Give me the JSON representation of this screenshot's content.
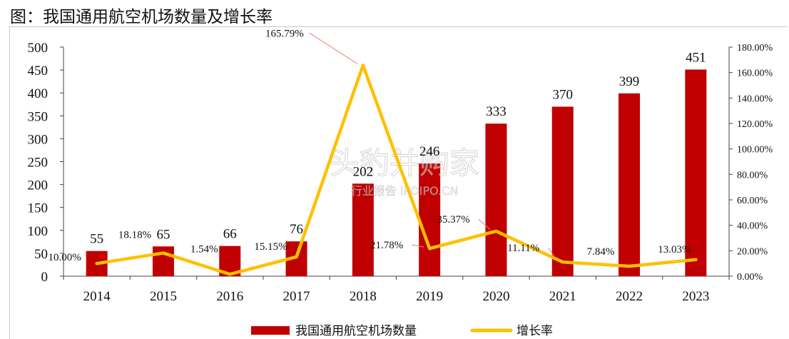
{
  "page": {
    "title": "图：我国通用航空机场数量及增长率"
  },
  "chart_data": {
    "type": "bar",
    "categories": [
      "2014",
      "2015",
      "2016",
      "2017",
      "2018",
      "2019",
      "2020",
      "2021",
      "2022",
      "2023"
    ],
    "series": [
      {
        "name": "我国通用航空机场数量",
        "type": "bar",
        "axis": "left",
        "values": [
          55,
          65,
          66,
          76,
          202,
          246,
          333,
          370,
          399,
          451
        ],
        "labels": [
          "55",
          "65",
          "66",
          "76",
          "202",
          "246",
          "333",
          "370",
          "399",
          "451"
        ]
      },
      {
        "name": "增长率",
        "type": "line",
        "axis": "right",
        "values": [
          10.0,
          18.18,
          1.54,
          15.15,
          165.79,
          21.78,
          35.37,
          11.11,
          7.84,
          13.03
        ],
        "labels": [
          "10.00%",
          "18.18%",
          "1.54%",
          "15.15%",
          "165.79%",
          "21.78%",
          "35.37%",
          "11.11%",
          "7.84%",
          "13.03%"
        ]
      }
    ],
    "y_left": {
      "min": 0,
      "max": 500,
      "step": 50,
      "ticks": [
        "0",
        "50",
        "100",
        "150",
        "200",
        "250",
        "300",
        "350",
        "400",
        "450",
        "500"
      ]
    },
    "y_right": {
      "min": 0,
      "max": 180,
      "step": 20,
      "ticks": [
        "0.00%",
        "20.00%",
        "40.00%",
        "60.00%",
        "80.00%",
        "100.00%",
        "120.00%",
        "140.00%",
        "160.00%",
        "180.00%"
      ]
    },
    "colors": {
      "bar": "#c00000",
      "line": "#ffc000",
      "leader": "#f08080"
    },
    "legend_position": "bottom",
    "grid": false,
    "watermark": {
      "main": "头豹并购家",
      "sub": "行业报告 IPOIPO.CN"
    }
  }
}
